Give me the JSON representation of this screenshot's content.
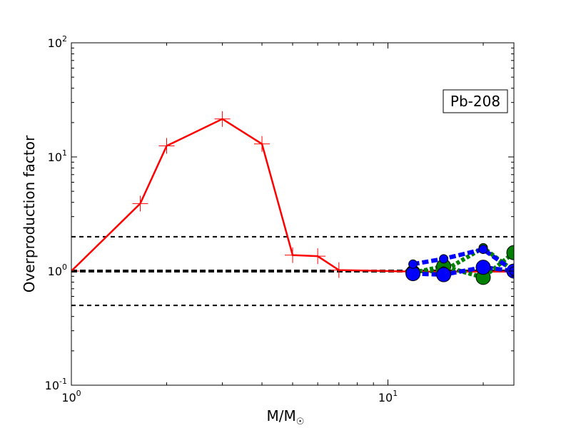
{
  "chart_data": {
    "type": "line",
    "annotation": "Pb-208",
    "xlabel": "M/M",
    "xlabel_symbol": "☉",
    "ylabel": "Overproduction factor",
    "xscale": "log",
    "yscale": "log",
    "xlim": [
      1,
      25
    ],
    "ylim": [
      0.1,
      100
    ],
    "x_ticks": [
      {
        "value": 1,
        "base": "10",
        "exp": "0"
      },
      {
        "value": 10,
        "base": "10",
        "exp": "1"
      }
    ],
    "y_ticks": [
      {
        "value": 0.1,
        "base": "10",
        "exp": "-1"
      },
      {
        "value": 1,
        "base": "10",
        "exp": "0"
      },
      {
        "value": 10,
        "base": "10",
        "exp": "1"
      },
      {
        "value": 100,
        "base": "10",
        "exp": "2"
      }
    ],
    "reference_lines": [
      {
        "y": 2.0,
        "style": "dashed",
        "color": "#000000"
      },
      {
        "y": 1.0,
        "style": "dashed-thick",
        "color": "#000000"
      },
      {
        "y": 0.5,
        "style": "dashed",
        "color": "#000000"
      }
    ],
    "series": [
      {
        "color": "#ff0000",
        "line": "solid",
        "marker": "plus",
        "x": [
          1.0,
          1.65,
          2.0,
          3.0,
          4.0,
          5.0,
          6.0,
          7.0,
          12.0,
          15.0,
          20.0,
          25.0
        ],
        "y": [
          1.0,
          3.9,
          12.5,
          21.5,
          13.0,
          1.38,
          1.35,
          1.02,
          0.99,
          0.99,
          0.99,
          0.99
        ]
      },
      {
        "color": "#008000",
        "line": "dotted",
        "marker": "circle-large",
        "x": [
          12.0,
          15.0,
          20.0,
          25.0
        ],
        "y": [
          0.97,
          1.1,
          0.88,
          1.45
        ]
      },
      {
        "color": "#008000",
        "line": "dotted",
        "marker": "circle-small",
        "x": [
          12.0,
          15.0,
          20.0,
          25.0
        ],
        "y": [
          1.0,
          1.0,
          1.6,
          1.0
        ]
      },
      {
        "color": "#0000ff",
        "line": "dashed",
        "marker": "circle-large",
        "x": [
          12.0,
          15.0,
          20.0,
          25.0
        ],
        "y": [
          0.95,
          0.93,
          1.08,
          1.0
        ]
      },
      {
        "color": "#0000ff",
        "line": "dashed",
        "marker": "circle-small",
        "x": [
          12.0,
          15.0,
          20.0,
          25.0
        ],
        "y": [
          1.15,
          1.28,
          1.55,
          1.0
        ]
      }
    ]
  }
}
